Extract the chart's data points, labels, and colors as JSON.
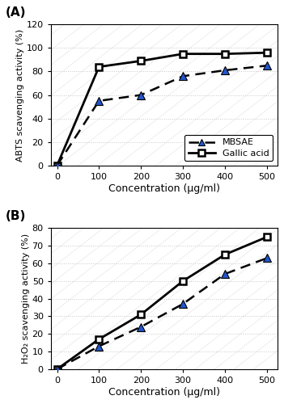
{
  "panel_A": {
    "x": [
      0,
      100,
      200,
      300,
      400,
      500
    ],
    "mbsae_y": [
      0,
      55,
      60,
      76,
      81,
      85
    ],
    "gallic_y": [
      0,
      84,
      89,
      95,
      95,
      96
    ],
    "ylabel": "ABTS scavenging activity (%)",
    "xlabel": "Concentration (μg/ml)",
    "ylim": [
      0,
      120
    ],
    "yticks": [
      0,
      20,
      40,
      60,
      80,
      100,
      120
    ],
    "xlim": [
      -15,
      525
    ],
    "xticks": [
      0,
      100,
      200,
      300,
      400,
      500
    ],
    "label": "(A)"
  },
  "panel_B": {
    "x": [
      0,
      100,
      200,
      300,
      400,
      500
    ],
    "mbsae_y": [
      0,
      13,
      24,
      37,
      54,
      63
    ],
    "gallic_y": [
      0,
      17,
      31,
      50,
      65,
      75
    ],
    "ylabel": "H₂O₂ scavenging activity (%)",
    "xlabel": "Concentration (μg/ml)",
    "ylim": [
      0,
      80
    ],
    "yticks": [
      0,
      10,
      20,
      30,
      40,
      50,
      60,
      70,
      80
    ],
    "xlim": [
      -15,
      525
    ],
    "xticks": [
      0,
      100,
      200,
      300,
      400,
      500
    ],
    "label": "(B)"
  },
  "mbsae_color": "#2255CC",
  "gallic_color": "#000000",
  "bg_color": "#ffffff",
  "grid_color": "#c8c8c8",
  "diag_color": "#d0d0d0",
  "legend_mbsae": "MBSAE",
  "legend_gallic": "Gallic acid"
}
